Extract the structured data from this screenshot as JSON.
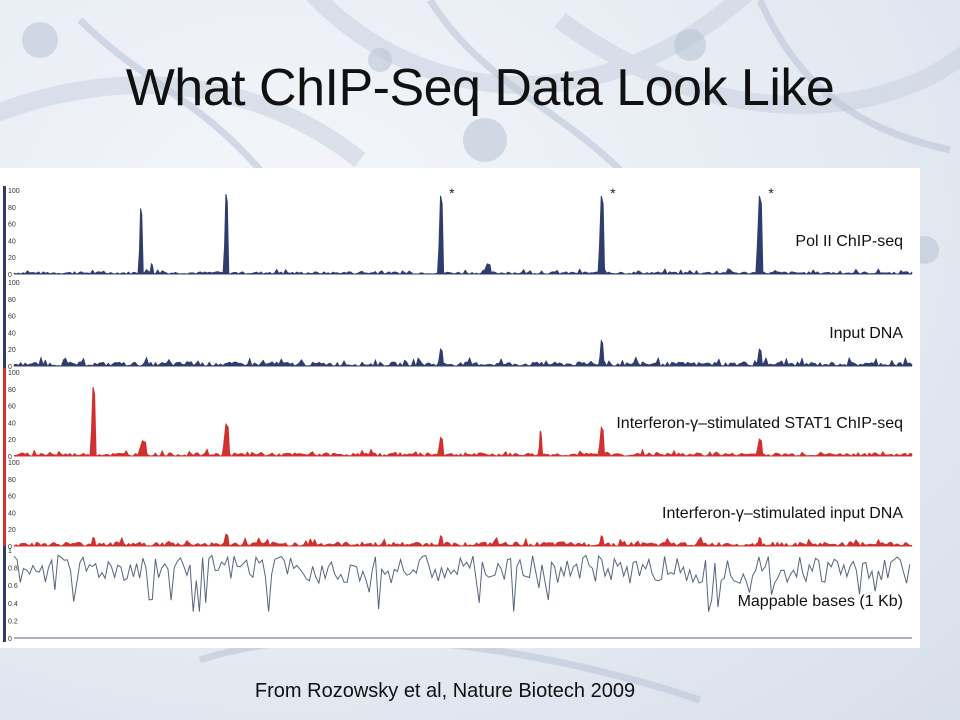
{
  "slide": {
    "title": "What ChIP-Seq Data Look Like",
    "caption": "From Rozowsky et al, Nature Biotech 2009"
  },
  "colors": {
    "blue_track": "#2e3d6e",
    "red_track": "#d2302f",
    "mappable_line": "#55657f"
  },
  "chart_data": {
    "type": "area",
    "x_range": [
      0,
      100
    ],
    "tracks": [
      {
        "label": "Pol II ChIP-seq",
        "color": "blue",
        "ylim": [
          0,
          100
        ],
        "yticks": [
          "100",
          "80",
          "60",
          "40",
          "20",
          "0"
        ],
        "baseline_noise": 3,
        "peaks": [
          {
            "x": 14.1,
            "y": 78,
            "width": 0.25
          },
          {
            "x": 15.3,
            "y": 12,
            "width": 0.2
          },
          {
            "x": 23.6,
            "y": 95,
            "width": 0.3
          },
          {
            "x": 47.5,
            "y": 93,
            "width": 0.35,
            "marked": true
          },
          {
            "x": 52.7,
            "y": 12,
            "width": 0.6
          },
          {
            "x": 65.4,
            "y": 93,
            "width": 0.4,
            "marked": true
          },
          {
            "x": 83.0,
            "y": 93,
            "width": 0.45,
            "marked": true
          }
        ],
        "annotations": [
          "*",
          "*",
          "*"
        ]
      },
      {
        "label": "Input DNA",
        "color": "blue",
        "ylim": [
          0,
          100
        ],
        "yticks": [
          "100",
          "80",
          "60",
          "40",
          "20",
          "0"
        ],
        "baseline_noise": 5,
        "peaks": [
          {
            "x": 47.5,
            "y": 20,
            "width": 0.35
          },
          {
            "x": 65.4,
            "y": 30,
            "width": 0.3
          },
          {
            "x": 83.0,
            "y": 20,
            "width": 0.35
          }
        ]
      },
      {
        "label": "Interferon-γ–stimulated STAT1 ChIP-seq",
        "color": "red",
        "ylim": [
          0,
          100
        ],
        "yticks": [
          "100",
          "80",
          "60",
          "40",
          "20",
          "0"
        ],
        "baseline_noise": 4,
        "peaks": [
          {
            "x": 8.8,
            "y": 82,
            "width": 0.35
          },
          {
            "x": 14.3,
            "y": 18,
            "width": 0.7
          },
          {
            "x": 23.6,
            "y": 38,
            "width": 0.5
          },
          {
            "x": 47.5,
            "y": 22,
            "width": 0.4
          },
          {
            "x": 58.6,
            "y": 30,
            "width": 0.2
          },
          {
            "x": 65.4,
            "y": 34,
            "width": 0.4
          },
          {
            "x": 83.0,
            "y": 20,
            "width": 0.45
          }
        ]
      },
      {
        "label": "Interferon-γ–stimulated input DNA",
        "color": "red",
        "ylim": [
          0,
          100
        ],
        "yticks": [
          "100",
          "80",
          "60",
          "40",
          "20",
          "0"
        ],
        "baseline_noise": 5,
        "peaks": [
          {
            "x": 8.8,
            "y": 10,
            "width": 0.3
          },
          {
            "x": 23.6,
            "y": 14,
            "width": 0.4
          },
          {
            "x": 47.5,
            "y": 12,
            "width": 0.3
          },
          {
            "x": 65.4,
            "y": 12,
            "width": 0.3
          },
          {
            "x": 83.0,
            "y": 10,
            "width": 0.3
          }
        ]
      },
      {
        "label": "Mappable bases (1 Kb)",
        "color": "line",
        "ylim": [
          0,
          1
        ],
        "yticks": [
          "1",
          "0.8",
          "0.6",
          "0.4",
          "0.2",
          "0"
        ],
        "mean": 0.78,
        "spread": 0.1
      }
    ]
  }
}
